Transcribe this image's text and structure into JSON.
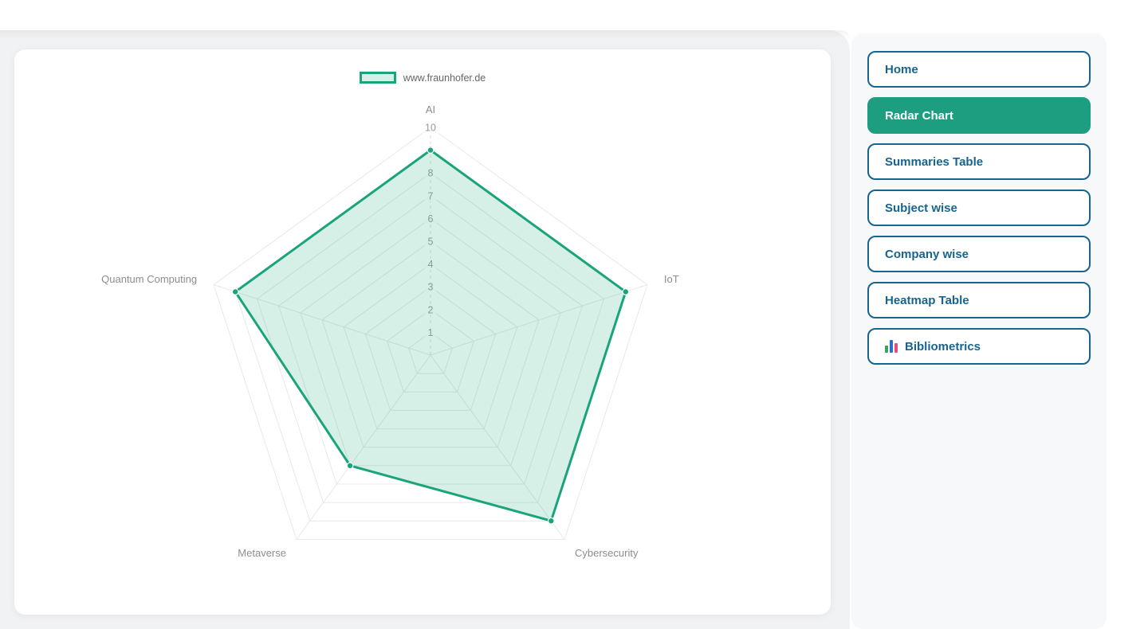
{
  "chart_data": {
    "type": "radar",
    "title": "",
    "categories": [
      "AI",
      "IoT",
      "Cybersecurity",
      "Metaverse",
      "Quantum Computing"
    ],
    "series": [
      {
        "name": "www.fraunhofer.de",
        "values": [
          9,
          9,
          9,
          6,
          9
        ]
      }
    ],
    "rmin": 0,
    "rmax": 10,
    "ticks": [
      1,
      2,
      3,
      4,
      5,
      6,
      7,
      8,
      9,
      10
    ],
    "grid": true,
    "legend_position": "top",
    "colors": {
      "stroke": "#1aa47c",
      "fill": "rgba(26,164,124,0.18)",
      "grid": "#e8e8e8",
      "axis_dash": "#d8d8d8",
      "tick_text": "#9b9b9b",
      "label_text": "#8d8d8d",
      "tick_backdrop": "rgba(255,255,255,0.75)",
      "point_border": "#ffffff"
    }
  },
  "sidebar": {
    "items": [
      {
        "label": "Home",
        "active": false
      },
      {
        "label": "Radar Chart",
        "active": true
      },
      {
        "label": "Summaries Table",
        "active": false
      },
      {
        "label": "Subject wise",
        "active": false
      },
      {
        "label": "Company wise",
        "active": false
      },
      {
        "label": "Heatmap Table",
        "active": false
      },
      {
        "label": "Bibliometrics",
        "active": false,
        "icon": "bar-chart-icon"
      }
    ],
    "active_color": "#1d9e80",
    "border_color": "#17648f"
  }
}
